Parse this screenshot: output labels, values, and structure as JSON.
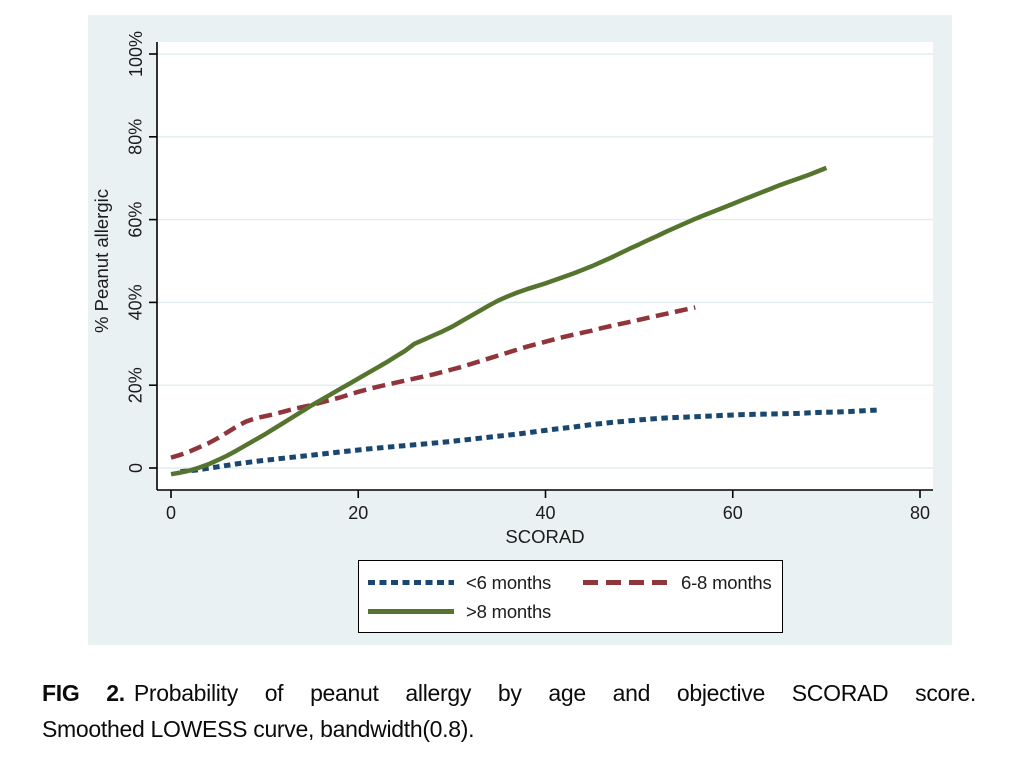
{
  "colors": {
    "panel_bg": "#eaf1f2",
    "plot_bg": "#ffffff",
    "gridline": "#e2edef",
    "axis": "#000000",
    "tick_text": "#1c1c1c",
    "legend_border": "#000000",
    "legend_bg": "#ffffff"
  },
  "chart_data": {
    "type": "line",
    "title": "",
    "xlabel": "SCORAD",
    "ylabel": "% Peanut allergic",
    "xlim": [
      -2,
      82
    ],
    "ylim": [
      -4,
      106
    ],
    "grid": "horizontal",
    "legend_position": "bottom-boxed",
    "x_ticks": [
      0,
      20,
      40,
      60,
      80
    ],
    "y_ticks": [
      {
        "value": 0,
        "label": "0"
      },
      {
        "value": 20,
        "label": "20%"
      },
      {
        "value": 40,
        "label": "40%"
      },
      {
        "value": 60,
        "label": "60%"
      },
      {
        "value": 80,
        "label": "80%"
      },
      {
        "value": 100,
        "label": "100%"
      }
    ],
    "series": [
      {
        "id": "lt6-months",
        "name": "<6 months",
        "color": "#1a476f",
        "style": "short-dash",
        "dash": "6.5 4.5",
        "width": 5,
        "points": [
          [
            1,
            -0.9
          ],
          [
            3,
            -0.4
          ],
          [
            5,
            0.3
          ],
          [
            7,
            1.0
          ],
          [
            9,
            1.6
          ],
          [
            11,
            2.1
          ],
          [
            13,
            2.6
          ],
          [
            15,
            3.1
          ],
          [
            17,
            3.6
          ],
          [
            19,
            4.1
          ],
          [
            21,
            4.6
          ],
          [
            23,
            5.0
          ],
          [
            25,
            5.4
          ],
          [
            27,
            5.8
          ],
          [
            29,
            6.2
          ],
          [
            31,
            6.7
          ],
          [
            33,
            7.2
          ],
          [
            35,
            7.7
          ],
          [
            37,
            8.2
          ],
          [
            39,
            8.8
          ],
          [
            41,
            9.4
          ],
          [
            43,
            9.9
          ],
          [
            45,
            10.5
          ],
          [
            47,
            11.0
          ],
          [
            49,
            11.4
          ],
          [
            51,
            11.8
          ],
          [
            53,
            12.1
          ],
          [
            55,
            12.3
          ],
          [
            57,
            12.5
          ],
          [
            59,
            12.7
          ],
          [
            61,
            12.9
          ],
          [
            63,
            13.0
          ],
          [
            65,
            13.1
          ],
          [
            67,
            13.2
          ],
          [
            69,
            13.4
          ],
          [
            71,
            13.5
          ],
          [
            73,
            13.7
          ],
          [
            75.5,
            14.0
          ]
        ]
      },
      {
        "id": "6-8-months",
        "name": "6-8 months",
        "color": "#90353b",
        "style": "long-dash",
        "dash": "13 6.5",
        "width": 4.5,
        "points": [
          [
            0,
            2.5
          ],
          [
            1,
            3.2
          ],
          [
            2,
            4.0
          ],
          [
            3,
            5.0
          ],
          [
            4,
            6.0
          ],
          [
            5,
            7.2
          ],
          [
            6,
            8.6
          ],
          [
            7,
            10.0
          ],
          [
            8,
            11.2
          ],
          [
            9,
            12.0
          ],
          [
            10,
            12.5
          ],
          [
            11,
            13.0
          ],
          [
            12,
            13.6
          ],
          [
            13,
            14.2
          ],
          [
            14,
            14.7
          ],
          [
            15,
            15.2
          ],
          [
            16,
            15.8
          ],
          [
            17,
            16.4
          ],
          [
            18,
            17.0
          ],
          [
            19,
            17.7
          ],
          [
            20,
            18.4
          ],
          [
            21,
            19.0
          ],
          [
            22,
            19.6
          ],
          [
            23,
            20.1
          ],
          [
            24,
            20.6
          ],
          [
            25,
            21.1
          ],
          [
            26,
            21.6
          ],
          [
            27,
            22.1
          ],
          [
            28,
            22.6
          ],
          [
            29,
            23.2
          ],
          [
            30,
            23.8
          ],
          [
            31,
            24.4
          ],
          [
            32,
            25.1
          ],
          [
            33,
            25.8
          ],
          [
            34,
            26.5
          ],
          [
            35,
            27.2
          ],
          [
            36,
            27.9
          ],
          [
            37,
            28.6
          ],
          [
            38,
            29.3
          ],
          [
            39,
            29.9
          ],
          [
            40,
            30.5
          ],
          [
            41,
            31.1
          ],
          [
            42,
            31.7
          ],
          [
            43,
            32.2
          ],
          [
            44,
            32.7
          ],
          [
            45,
            33.2
          ],
          [
            46,
            33.8
          ],
          [
            47,
            34.3
          ],
          [
            48,
            34.8
          ],
          [
            49,
            35.3
          ],
          [
            50,
            35.8
          ],
          [
            51,
            36.3
          ],
          [
            52,
            36.8
          ],
          [
            53,
            37.3
          ],
          [
            54,
            37.8
          ],
          [
            55,
            38.3
          ],
          [
            56,
            38.8
          ]
        ]
      },
      {
        "id": "gt8-months",
        "name": ">8 months",
        "color": "#55752f",
        "style": "solid",
        "dash": "",
        "width": 4.5,
        "points": [
          [
            0,
            -1.5
          ],
          [
            1,
            -1.1
          ],
          [
            2,
            -0.6
          ],
          [
            3,
            0.1
          ],
          [
            4,
            0.9
          ],
          [
            5,
            1.9
          ],
          [
            6,
            3.0
          ],
          [
            7,
            4.2
          ],
          [
            8,
            5.5
          ],
          [
            9,
            6.8
          ],
          [
            10,
            8.1
          ],
          [
            11,
            9.5
          ],
          [
            12,
            10.9
          ],
          [
            13,
            12.3
          ],
          [
            14,
            13.7
          ],
          [
            15,
            15.1
          ],
          [
            16,
            16.4
          ],
          [
            17,
            17.7
          ],
          [
            18,
            19.0
          ],
          [
            19,
            20.3
          ],
          [
            20,
            21.6
          ],
          [
            21,
            22.9
          ],
          [
            22,
            24.2
          ],
          [
            23,
            25.5
          ],
          [
            24,
            26.9
          ],
          [
            25,
            28.3
          ],
          [
            26,
            30.0
          ],
          [
            27,
            31.0
          ],
          [
            28,
            32.0
          ],
          [
            29,
            33.0
          ],
          [
            30,
            34.1
          ],
          [
            31,
            35.4
          ],
          [
            32,
            36.7
          ],
          [
            33,
            38.0
          ],
          [
            34,
            39.3
          ],
          [
            35,
            40.5
          ],
          [
            36,
            41.5
          ],
          [
            37,
            42.4
          ],
          [
            38,
            43.2
          ],
          [
            39,
            43.9
          ],
          [
            40,
            44.6
          ],
          [
            41,
            45.4
          ],
          [
            42,
            46.2
          ],
          [
            43,
            47.0
          ],
          [
            44,
            47.9
          ],
          [
            45,
            48.8
          ],
          [
            46,
            49.8
          ],
          [
            47,
            50.8
          ],
          [
            48,
            51.9
          ],
          [
            49,
            53.0
          ],
          [
            50,
            54.0
          ],
          [
            51,
            55.1
          ],
          [
            52,
            56.1
          ],
          [
            53,
            57.2
          ],
          [
            54,
            58.2
          ],
          [
            55,
            59.2
          ],
          [
            56,
            60.2
          ],
          [
            57,
            61.1
          ],
          [
            58,
            62.0
          ],
          [
            59,
            62.9
          ],
          [
            60,
            63.8
          ],
          [
            61,
            64.7
          ],
          [
            62,
            65.6
          ],
          [
            63,
            66.5
          ],
          [
            64,
            67.4
          ],
          [
            65,
            68.3
          ],
          [
            66,
            69.1
          ],
          [
            67,
            69.9
          ],
          [
            68,
            70.7
          ],
          [
            69,
            71.6
          ],
          [
            70,
            72.5
          ]
        ]
      }
    ]
  },
  "caption": {
    "label": "FIG 2.",
    "line1": "Probability of peanut allergy by age and objective SCORAD score.",
    "line2": "Smoothed LOWESS curve, bandwidth(0.8)."
  }
}
